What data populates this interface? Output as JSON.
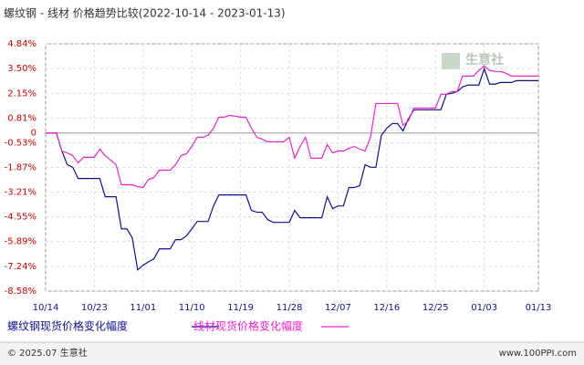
{
  "chart_data": {
    "type": "line",
    "title": "螺纹钢 - 线材 价格趋势比较(2022-10-14 - 2023-01-13)",
    "watermark": "生意社",
    "footer_left": "© 2025.07 生意社",
    "footer_right": "www.100PPI.com",
    "categories": [
      "10/14",
      null,
      null,
      null,
      null,
      null,
      null,
      null,
      null,
      "10/23",
      null,
      null,
      null,
      null,
      null,
      null,
      null,
      null,
      "11/01",
      null,
      null,
      null,
      null,
      null,
      null,
      null,
      null,
      "11/10",
      null,
      null,
      null,
      null,
      null,
      null,
      null,
      null,
      "11/19",
      null,
      null,
      null,
      null,
      null,
      null,
      null,
      null,
      "11/28",
      null,
      null,
      null,
      null,
      null,
      null,
      null,
      null,
      "12/07",
      null,
      null,
      null,
      null,
      null,
      null,
      null,
      null,
      "12/16",
      null,
      null,
      null,
      null,
      null,
      null,
      null,
      null,
      "12/25",
      null,
      null,
      null,
      null,
      null,
      null,
      null,
      null,
      "01/03",
      null,
      null,
      null,
      null,
      null,
      null,
      null,
      null,
      null,
      "01/13"
    ],
    "series": [
      {
        "name": "螺纹钢现货价格变化幅度",
        "color": "#10108f",
        "values": [
          0,
          0,
          0,
          -0.98,
          -1.72,
          -1.86,
          -2.47,
          -2.47,
          -2.47,
          -2.47,
          -2.47,
          -3.46,
          -3.46,
          -3.46,
          -5.2,
          -5.2,
          -5.69,
          -7.43,
          -7.18,
          -6.99,
          -6.83,
          -6.29,
          -6.29,
          -6.29,
          -5.79,
          -5.79,
          -5.59,
          -5.2,
          -4.8,
          -4.8,
          -4.8,
          -3.96,
          -3.36,
          -3.36,
          -3.36,
          -3.36,
          -3.36,
          -3.36,
          -4.2,
          -4.3,
          -4.3,
          -4.7,
          -4.85,
          -4.85,
          -4.85,
          -4.85,
          -4.2,
          -4.6,
          -4.6,
          -4.6,
          -4.6,
          -4.6,
          -3.46,
          -4.1,
          -3.96,
          -3.96,
          -2.96,
          -2.96,
          -2.86,
          -1.72,
          -1.86,
          -1.86,
          -0.13,
          0.26,
          0.51,
          0.51,
          0.11,
          0.76,
          1.26,
          1.26,
          1.26,
          1.26,
          1.26,
          1.26,
          2.1,
          2.15,
          2.25,
          2.5,
          2.6,
          2.6,
          2.6,
          3.49,
          2.65,
          2.65,
          2.74,
          2.74,
          2.74,
          2.84,
          2.84,
          2.84,
          2.84,
          2.84
        ]
      },
      {
        "name": "线材现货价格变化幅度",
        "color": "#ee22cc",
        "values": [
          0,
          0,
          0,
          -0.98,
          -1.08,
          -1.23,
          -1.62,
          -1.32,
          -1.32,
          -1.32,
          -0.88,
          -1.23,
          -1.47,
          -1.72,
          -2.81,
          -2.81,
          -2.81,
          -2.91,
          -2.96,
          -2.52,
          -2.42,
          -2.02,
          -2.02,
          -2.02,
          -1.72,
          -1.23,
          -1.13,
          -0.73,
          -0.23,
          -0.23,
          -0.13,
          0.26,
          0.86,
          0.86,
          0.96,
          0.91,
          0.86,
          0.86,
          0.26,
          -0.23,
          -0.33,
          -0.48,
          -0.48,
          -0.48,
          -0.48,
          -0.23,
          -1.37,
          -0.73,
          -0.23,
          -1.37,
          -1.37,
          -1.37,
          -0.63,
          -1.08,
          -0.98,
          -0.98,
          -0.83,
          -0.73,
          -0.88,
          -0.98,
          -0.23,
          1.6,
          1.6,
          1.6,
          1.6,
          1.6,
          0.41,
          0.66,
          1.35,
          1.35,
          1.35,
          1.35,
          1.35,
          2.1,
          2.1,
          2.25,
          2.25,
          3.09,
          3.09,
          3.09,
          3.39,
          3.64,
          3.39,
          3.34,
          3.34,
          3.24,
          3.09,
          3.09,
          3.09,
          3.09,
          3.09,
          3.09
        ]
      }
    ],
    "ylim": [
      -8.58,
      4.84
    ],
    "yticks": [
      {
        "value": 4.84,
        "label": "4.84%"
      },
      {
        "value": 3.5,
        "label": "3.50%"
      },
      {
        "value": 2.15,
        "label": "2.15%"
      },
      {
        "value": 0.81,
        "label": "0.81%"
      },
      0,
      {
        "value": -0.53,
        "label": "-0.53%"
      },
      {
        "value": -1.87,
        "label": "-1.87%"
      },
      {
        "value": -3.21,
        "label": "-3.21%"
      },
      {
        "value": -4.55,
        "label": "-4.55%"
      },
      {
        "value": -5.89,
        "label": "-5.89%"
      },
      {
        "value": -7.24,
        "label": "-7.24%"
      },
      {
        "value": -8.58,
        "label": "-8.58%"
      }
    ],
    "grid": true
  }
}
